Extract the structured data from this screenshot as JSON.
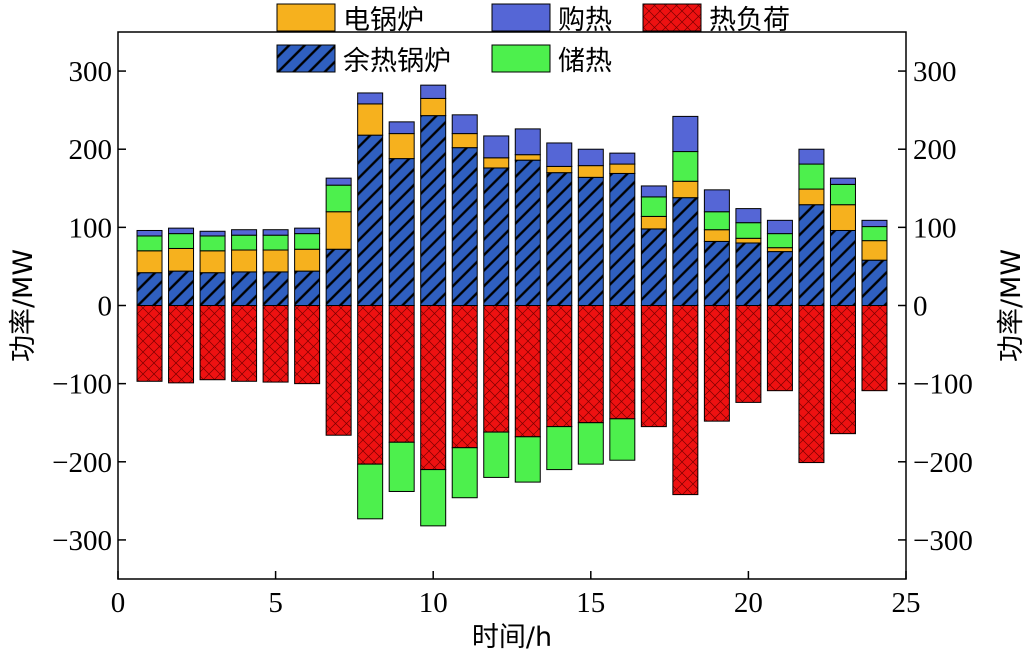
{
  "chart_data": {
    "type": "bar",
    "stacked": true,
    "xlabel": "时间/h",
    "ylabel_left": "功率/MW",
    "ylabel_right": "功率/MW",
    "xlim": [
      0,
      25
    ],
    "ylim": [
      -350,
      350
    ],
    "x_ticks": [
      0,
      5,
      10,
      15,
      20,
      25
    ],
    "y_ticks": [
      -300,
      -200,
      -100,
      0,
      100,
      200,
      300
    ],
    "x": [
      1,
      2,
      3,
      4,
      5,
      6,
      7,
      8,
      9,
      10,
      11,
      12,
      13,
      14,
      15,
      16,
      17,
      18,
      19,
      20,
      21,
      22,
      23,
      24
    ],
    "series": [
      {
        "name": "余热锅炉",
        "color": "#2f5fc0",
        "hatch": "diagonal",
        "values": [
          42,
          44,
          42,
          43,
          43,
          44,
          72,
          218,
          188,
          243,
          202,
          176,
          186,
          170,
          164,
          169,
          98,
          138,
          82,
          80,
          69,
          129,
          96,
          58
        ]
      },
      {
        "name": "电锅炉",
        "color": "#f6b11e",
        "hatch": "none",
        "values": [
          28,
          29,
          28,
          28,
          28,
          28,
          48,
          40,
          32,
          22,
          18,
          13,
          7,
          8,
          15,
          12,
          16,
          21,
          15,
          6,
          5,
          20,
          33,
          25
        ]
      },
      {
        "name": "储热",
        "color": "#4df04d",
        "hatch": "none",
        "values": [
          19,
          19,
          19,
          19,
          19,
          20,
          34,
          0,
          0,
          0,
          0,
          0,
          0,
          0,
          0,
          0,
          25,
          38,
          23,
          20,
          18,
          32,
          26,
          18
        ]
      },
      {
        "name": "购热",
        "color": "#5566d6",
        "hatch": "none",
        "values": [
          7,
          7,
          6,
          7,
          7,
          7,
          9,
          14,
          15,
          17,
          24,
          28,
          33,
          30,
          21,
          14,
          14,
          45,
          28,
          18,
          17,
          19,
          8,
          8
        ]
      },
      {
        "name": "热负荷",
        "color": "#ee1111",
        "hatch": "crosshatch",
        "values": [
          -97,
          -99,
          -95,
          -97,
          -98,
          -100,
          -166,
          -203,
          -175,
          -210,
          -182,
          -162,
          -168,
          -155,
          -150,
          -145,
          -155,
          -242,
          -148,
          -124,
          -109,
          -201,
          -164,
          -109
        ]
      },
      {
        "name": "储热",
        "color": "#4df04d",
        "hatch": "none",
        "negative_part": true,
        "values": [
          0,
          0,
          0,
          0,
          0,
          0,
          0,
          -70,
          -63,
          -72,
          -64,
          -58,
          -58,
          -55,
          -53,
          -53,
          0,
          0,
          0,
          0,
          0,
          0,
          0,
          0
        ]
      }
    ],
    "legend": [
      {
        "name": "电锅炉",
        "color": "#f6b11e",
        "hatch": "none"
      },
      {
        "name": "购热",
        "color": "#5566d6",
        "hatch": "none"
      },
      {
        "name": "热负荷",
        "color": "#ee1111",
        "hatch": "crosshatch"
      },
      {
        "name": "余热锅炉",
        "color": "#2f5fc0",
        "hatch": "diagonal"
      },
      {
        "name": "储热",
        "color": "#4df04d",
        "hatch": "none"
      }
    ],
    "legend_position": "top"
  }
}
